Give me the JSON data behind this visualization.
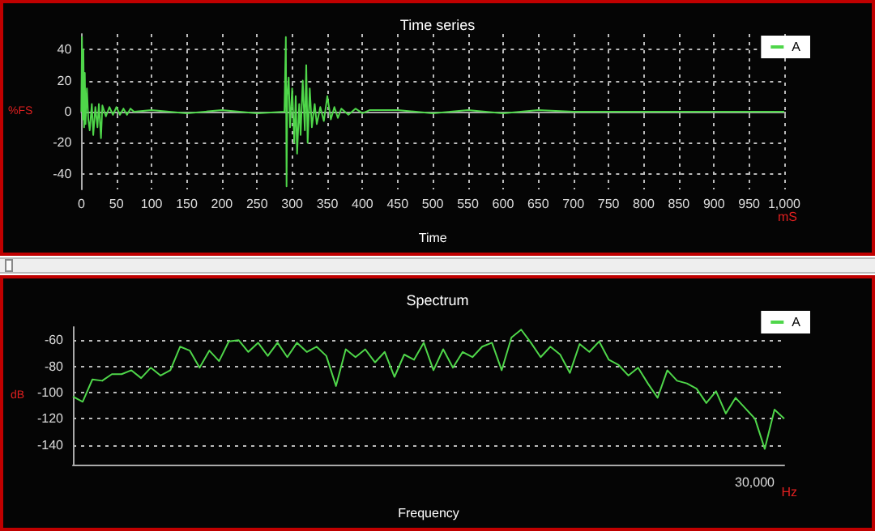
{
  "chart_data": [
    {
      "type": "line",
      "title": "Time series",
      "xlabel": "Time",
      "ylabel": "%FS",
      "annotations": [
        "mS"
      ],
      "x": [
        0,
        1,
        2,
        3,
        4,
        5,
        6,
        8,
        10,
        12,
        15,
        17,
        20,
        23,
        25,
        28,
        30,
        35,
        40,
        45,
        50,
        55,
        60,
        65,
        70,
        75,
        100,
        150,
        200,
        250,
        289,
        291,
        292,
        293,
        295,
        297,
        300,
        303,
        305,
        307,
        310,
        312,
        315,
        318,
        320,
        322,
        325,
        328,
        332,
        335,
        340,
        345,
        350,
        355,
        360,
        365,
        370,
        380,
        390,
        400,
        410,
        450,
        500,
        550,
        600,
        650,
        700,
        750,
        800,
        850,
        900,
        950,
        1000
      ],
      "series": [
        {
          "name": "A",
          "color": "#4fd64a",
          "values": [
            0,
            48,
            -5,
            40,
            -10,
            25,
            -8,
            15,
            -5,
            -12,
            5,
            -15,
            3,
            -10,
            5,
            -17,
            4,
            -3,
            3,
            -2,
            3,
            -2,
            2,
            -2,
            2,
            0,
            1,
            -1,
            1,
            -1,
            0,
            48,
            -48,
            10,
            22,
            -10,
            15,
            -20,
            10,
            -27,
            5,
            -15,
            20,
            -12,
            30,
            -20,
            15,
            -10,
            5,
            -8,
            3,
            -6,
            10,
            -5,
            3,
            -4,
            2,
            -2,
            2,
            -1,
            1,
            1,
            -1,
            1,
            -1,
            1,
            0,
            0,
            0,
            0,
            0,
            0,
            0
          ]
        }
      ],
      "xlim": [
        0,
        1000
      ],
      "xticks": [
        0,
        50,
        100,
        150,
        200,
        250,
        300,
        350,
        400,
        450,
        500,
        550,
        600,
        650,
        700,
        750,
        800,
        850,
        900,
        950,
        {
          "value": 1000,
          "label": "1,000"
        }
      ],
      "ylim": [
        -50,
        50
      ],
      "yticks": [
        -40,
        -20,
        0,
        20,
        40
      ],
      "grid": true,
      "legend": "top right",
      "marker": "none",
      "line_style": "solid"
    },
    {
      "type": "line",
      "title": "Spectrum",
      "xlabel": "Frequency",
      "ylabel": "dB",
      "annotations": [
        "Hz",
        "30,000"
      ],
      "categories": [
        null,
        null,
        null,
        null,
        null,
        null,
        null,
        null,
        null,
        null,
        null,
        null,
        null,
        null,
        null,
        null,
        null,
        null,
        null,
        null,
        null,
        null,
        null,
        null,
        null,
        null,
        null,
        null,
        null,
        null,
        null,
        null,
        null,
        null,
        null,
        null,
        null,
        null,
        null,
        null,
        null,
        null,
        null,
        null,
        null,
        null,
        null,
        null,
        null,
        null,
        null,
        null,
        null,
        null,
        null,
        null,
        null,
        null,
        null,
        null,
        null,
        null,
        null,
        null,
        null,
        null,
        null,
        null,
        null,
        null,
        null,
        null,
        null,
        null
      ],
      "series": [
        {
          "name": "A",
          "color": "#4fd64a",
          "values": [
            -103,
            -107,
            -90,
            -91,
            -86,
            -86,
            -83,
            -89,
            -81,
            -87,
            -83,
            -65,
            -68,
            -81,
            -68,
            -76,
            -61,
            -60,
            -69,
            -62,
            -72,
            -62,
            -73,
            -62,
            -69,
            -65,
            -72,
            -95,
            -67,
            -73,
            -67,
            -77,
            -69,
            -88,
            -71,
            -75,
            -62,
            -83,
            -67,
            -81,
            -69,
            -73,
            -65,
            -62,
            -83,
            -58,
            -52,
            -62,
            -73,
            -65,
            -71,
            -85,
            -63,
            -69,
            -61,
            -75,
            -79,
            -87,
            -81,
            -93,
            -104,
            -83,
            -91,
            -93,
            -97,
            -108,
            -99,
            -116,
            -104,
            -112,
            -120,
            -143,
            -113,
            -120
          ]
        }
      ],
      "ylim": [
        -155,
        -50
      ],
      "yticks": [
        -140,
        -120,
        -100,
        -80,
        -60
      ],
      "grid": "y",
      "legend": "top right",
      "marker": "none",
      "line_style": "solid"
    }
  ]
}
